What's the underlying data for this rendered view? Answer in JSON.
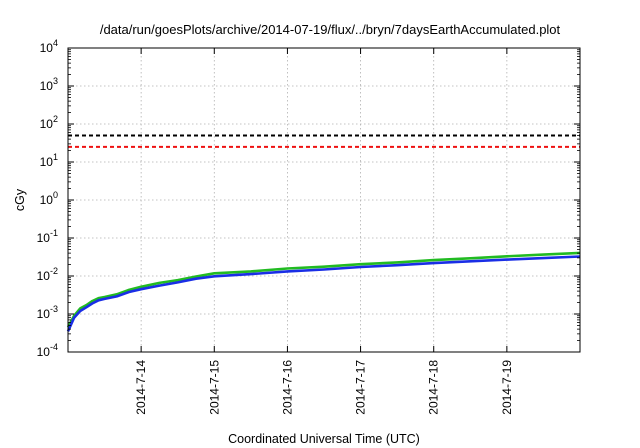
{
  "chart_data": {
    "type": "line",
    "title": "/data/run/goesPlots/archive/2014-07-19/flux/../bryn/7daysEarthAccumulated.plot",
    "xlabel": "Coordinated Universal Time (UTC)",
    "ylabel": "cGy",
    "yscale": "log",
    "ylim": [
      0.0001,
      10000
    ],
    "y_ticks": [
      {
        "base": "10",
        "exp": "-4",
        "value": 0.0001
      },
      {
        "base": "10",
        "exp": "-3",
        "value": 0.001
      },
      {
        "base": "10",
        "exp": "-2",
        "value": 0.01
      },
      {
        "base": "10",
        "exp": "-1",
        "value": 0.1
      },
      {
        "base": "10",
        "exp": "0",
        "value": 1
      },
      {
        "base": "10",
        "exp": "1",
        "value": 10
      },
      {
        "base": "10",
        "exp": "2",
        "value": 100
      },
      {
        "base": "10",
        "exp": "3",
        "value": 1000
      },
      {
        "base": "10",
        "exp": "4",
        "value": 10000
      }
    ],
    "xlim": [
      "2014-07-13 00:00",
      "2014-07-20 00:00"
    ],
    "x_ticks": [
      "2014-7-14",
      "2014-7-15",
      "2014-7-16",
      "2014-7-17",
      "2014-7-18",
      "2014-7-19"
    ],
    "grid": true,
    "colors": {
      "green": "#22bb22",
      "blue": "#1a2ee6",
      "black_dashed": "#000000",
      "red_dashed": "#ee1111"
    },
    "thresholds": [
      {
        "value": 50,
        "color": "#000000",
        "style": "dashed"
      },
      {
        "value": 25,
        "color": "#ee1111",
        "style": "dashed"
      }
    ],
    "series": [
      {
        "color": "#22bb22",
        "x": [
          "2014-07-13 00:00",
          "2014-07-13 02:00",
          "2014-07-13 04:00",
          "2014-07-13 06:00",
          "2014-07-13 08:00",
          "2014-07-13 10:00",
          "2014-07-13 12:00",
          "2014-07-13 16:00",
          "2014-07-13 20:00",
          "2014-07-14 00:00",
          "2014-07-14 06:00",
          "2014-07-14 12:00",
          "2014-07-14 18:00",
          "2014-07-15 00:00",
          "2014-07-15 12:00",
          "2014-07-16 00:00",
          "2014-07-16 12:00",
          "2014-07-17 00:00",
          "2014-07-17 12:00",
          "2014-07-18 00:00",
          "2014-07-18 12:00",
          "2014-07-19 00:00",
          "2014-07-19 12:00",
          "2014-07-20 00:00"
        ],
        "y": [
          0.00045,
          0.0009,
          0.0014,
          0.0017,
          0.0022,
          0.0026,
          0.0028,
          0.0033,
          0.0043,
          0.0052,
          0.0066,
          0.0078,
          0.0097,
          0.0118,
          0.0132,
          0.0158,
          0.0176,
          0.0205,
          0.0228,
          0.0262,
          0.0292,
          0.033,
          0.0365,
          0.0405
        ]
      },
      {
        "color": "#1a2ee6",
        "x": [
          "2014-07-13 00:00",
          "2014-07-13 02:00",
          "2014-07-13 04:00",
          "2014-07-13 06:00",
          "2014-07-13 08:00",
          "2014-07-13 10:00",
          "2014-07-13 12:00",
          "2014-07-13 16:00",
          "2014-07-13 20:00",
          "2014-07-14 00:00",
          "2014-07-14 06:00",
          "2014-07-14 12:00",
          "2014-07-14 18:00",
          "2014-07-15 00:00",
          "2014-07-15 12:00",
          "2014-07-16 00:00",
          "2014-07-16 12:00",
          "2014-07-17 00:00",
          "2014-07-17 12:00",
          "2014-07-18 00:00",
          "2014-07-18 12:00",
          "2014-07-19 00:00",
          "2014-07-19 12:00",
          "2014-07-20 00:00"
        ],
        "y": [
          0.00035,
          0.0008,
          0.0012,
          0.0015,
          0.0019,
          0.0023,
          0.0025,
          0.0029,
          0.0038,
          0.0045,
          0.0056,
          0.0068,
          0.0085,
          0.0098,
          0.0112,
          0.0132,
          0.0148,
          0.0172,
          0.0192,
          0.0218,
          0.0244,
          0.027,
          0.0295,
          0.0325
        ]
      }
    ]
  }
}
